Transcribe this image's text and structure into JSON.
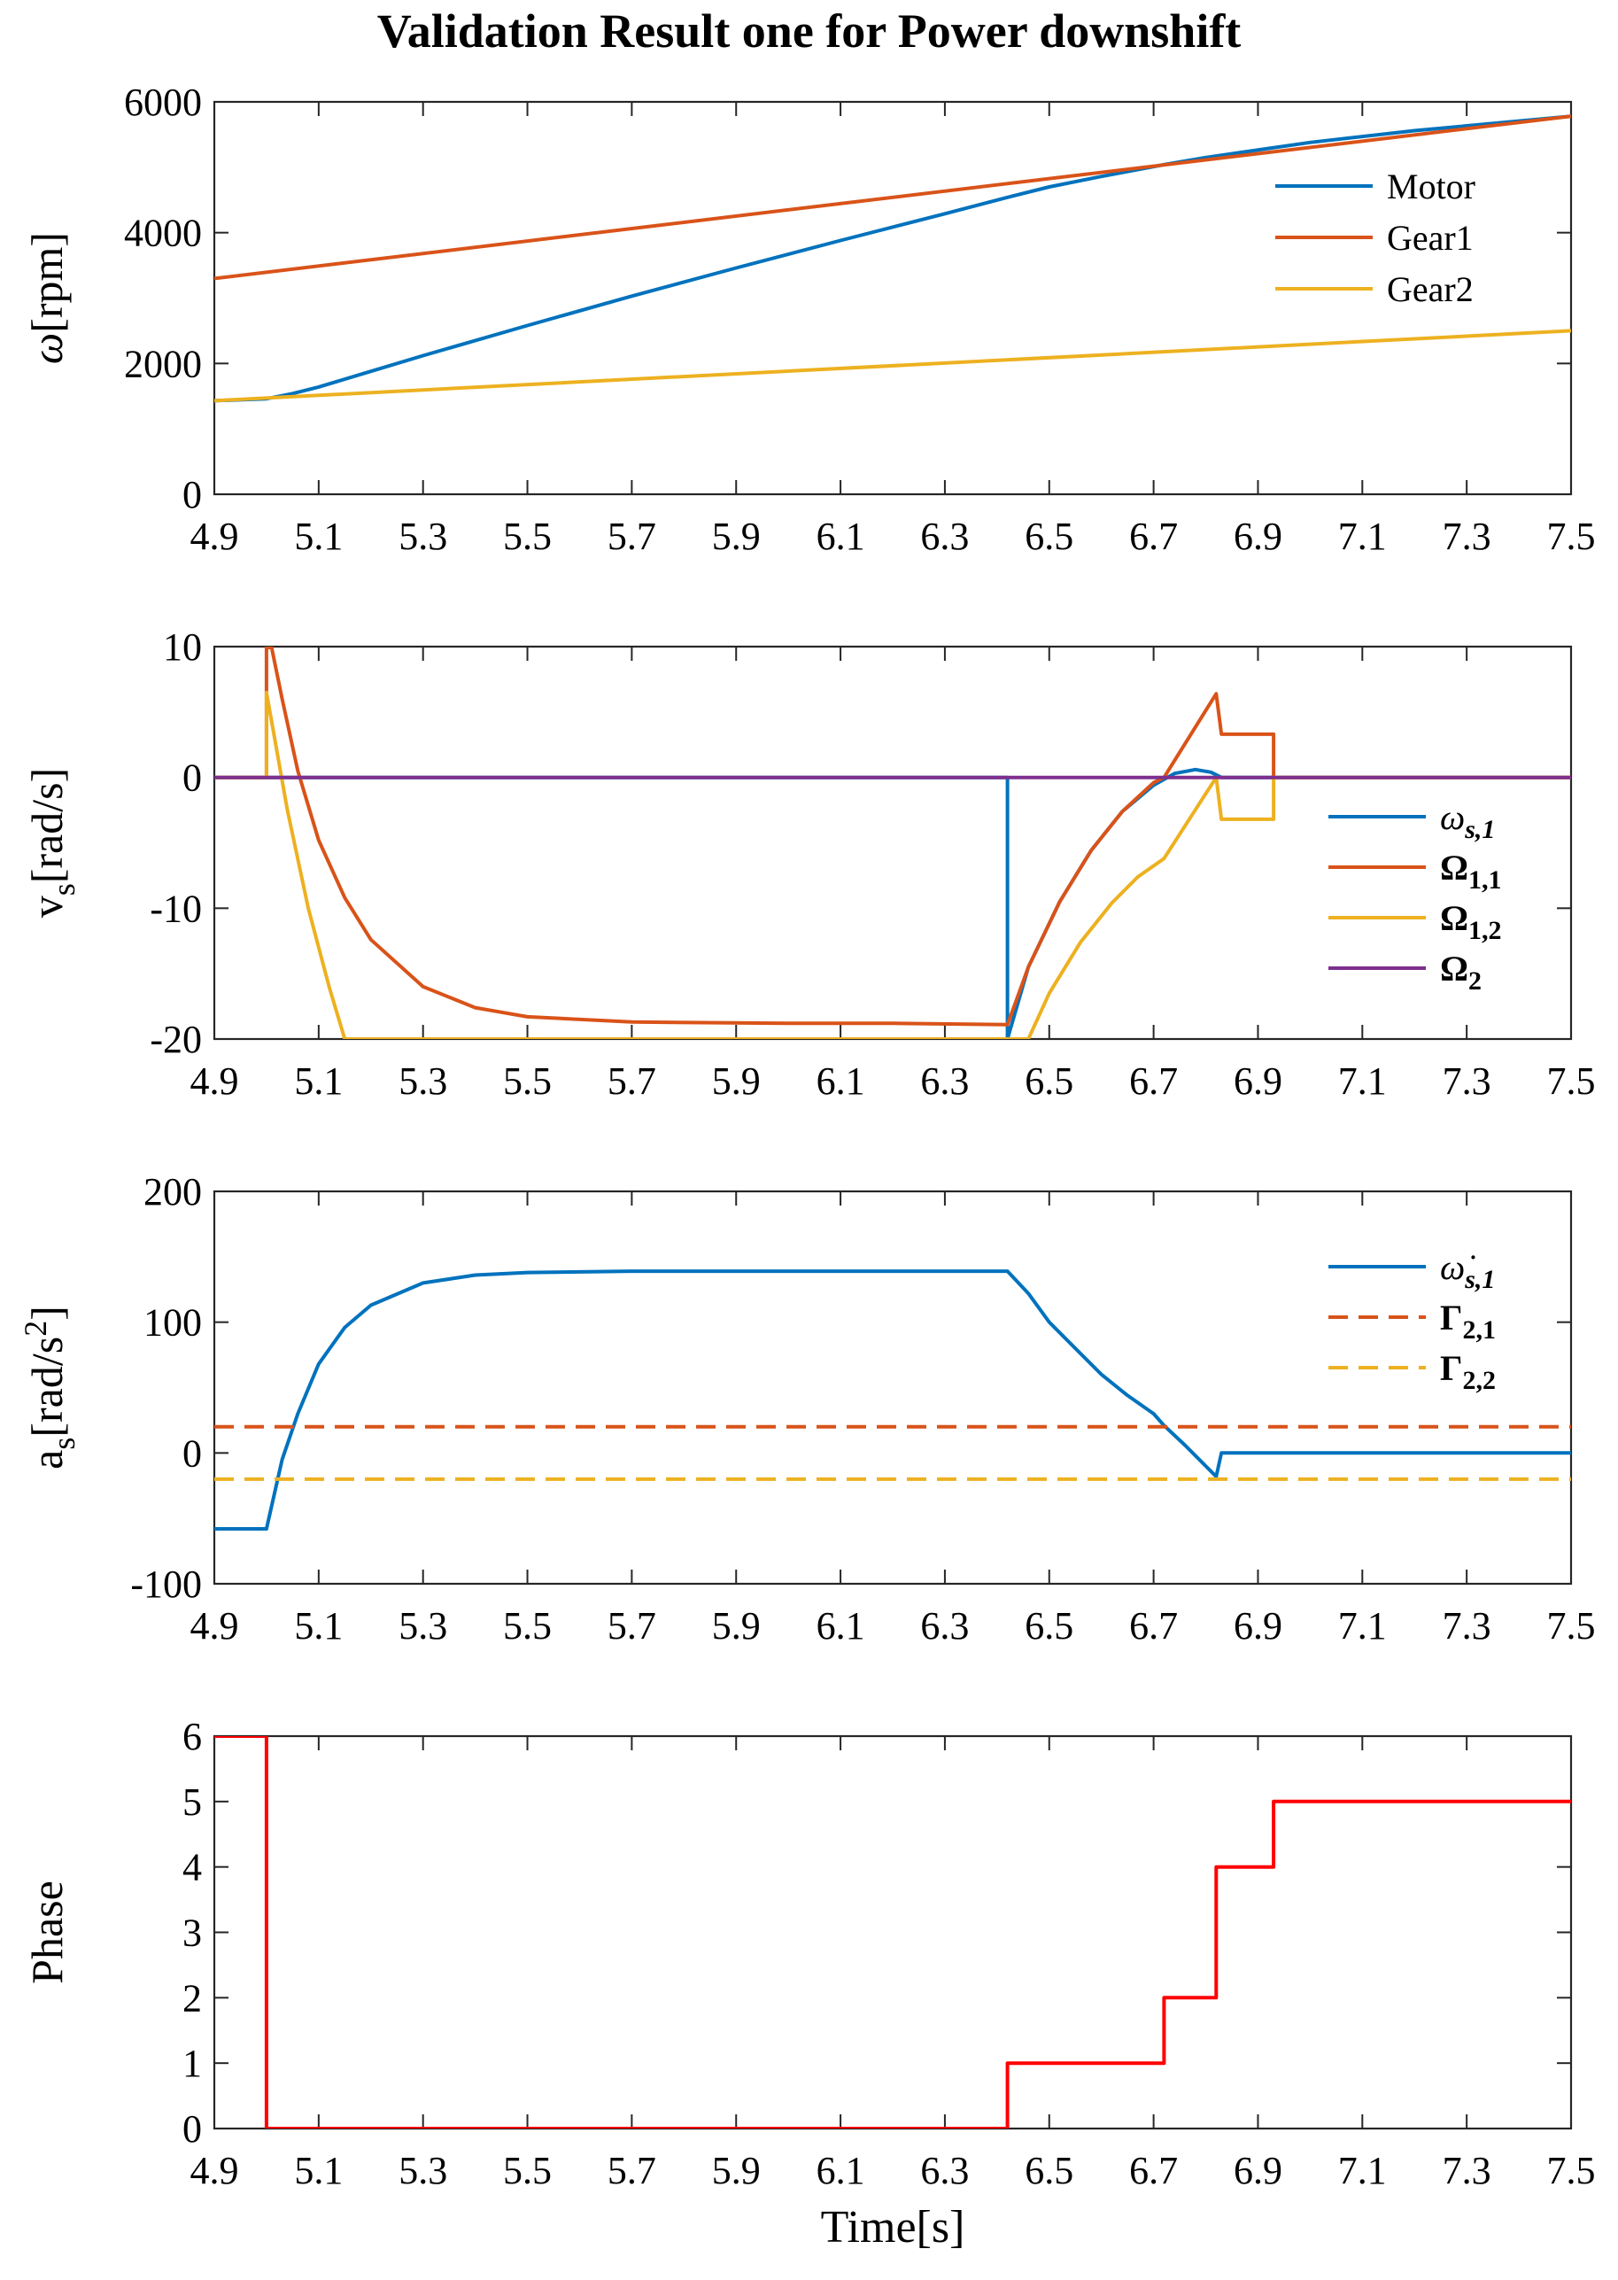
{
  "figure_title": "Validation Result one for Power downshift",
  "colors": {
    "blue": "#0072BD",
    "orange": "#D95319",
    "yellow": "#EDB120",
    "purple": "#7E2F8E",
    "red": "#FF0000",
    "axis": "#262626"
  },
  "chart_data": [
    {
      "type": "line",
      "ylabel_symbol": "ω",
      "ylabel_unit": "[rpm]",
      "xlim": [
        4.9,
        7.5
      ],
      "ylim": [
        0,
        6000
      ],
      "x_ticks": [
        "4.9",
        "5.1",
        "5.3",
        "5.5",
        "5.7",
        "5.9",
        "6.1",
        "6.3",
        "6.5",
        "6.7",
        "6.9",
        "7.1",
        "7.3",
        "7.5"
      ],
      "y_ticks": [
        "0",
        "2000",
        "4000",
        "6000"
      ],
      "legend": {
        "position": "top-right",
        "labels": [
          "Motor",
          "Gear1",
          "Gear2"
        ]
      },
      "series": [
        {
          "name": "Motor",
          "color": "blue",
          "dash": false,
          "points": [
            [
              4.9,
              1430
            ],
            [
              5.0,
              1460
            ],
            [
              5.05,
              1540
            ],
            [
              5.1,
              1640
            ],
            [
              5.2,
              1880
            ],
            [
              5.3,
              2120
            ],
            [
              5.5,
              2580
            ],
            [
              5.7,
              3030
            ],
            [
              5.9,
              3460
            ],
            [
              6.1,
              3880
            ],
            [
              6.3,
              4290
            ],
            [
              6.42,
              4540
            ],
            [
              6.5,
              4700
            ],
            [
              6.6,
              4860
            ],
            [
              6.72,
              5040
            ],
            [
              6.8,
              5150
            ],
            [
              7.0,
              5380
            ],
            [
              7.2,
              5560
            ],
            [
              7.5,
              5780
            ]
          ]
        },
        {
          "name": "Gear1",
          "color": "orange",
          "dash": false,
          "points": [
            [
              4.9,
              3300
            ],
            [
              7.5,
              5780
            ]
          ]
        },
        {
          "name": "Gear2",
          "color": "yellow",
          "dash": false,
          "points": [
            [
              4.9,
              1430
            ],
            [
              7.5,
              2500
            ]
          ]
        }
      ]
    },
    {
      "type": "line",
      "ylabel_symbol": "v",
      "ylabel_sub": "s",
      "ylabel_unit": "[rad/s]",
      "xlim": [
        4.9,
        7.5
      ],
      "ylim": [
        -20,
        10
      ],
      "x_ticks": [
        "4.9",
        "5.1",
        "5.3",
        "5.5",
        "5.7",
        "5.9",
        "6.1",
        "6.3",
        "6.5",
        "6.7",
        "6.9",
        "7.1",
        "7.3",
        "7.5"
      ],
      "y_ticks": [
        "-20",
        "-10",
        "0",
        "10"
      ],
      "legend": {
        "position": "right",
        "labels": [
          {
            "sym": "ω",
            "sub": "s,1",
            "italic": true
          },
          {
            "sym": "Ω",
            "sub": "1,1",
            "italic": false
          },
          {
            "sym": "Ω",
            "sub": "1,2",
            "italic": false
          },
          {
            "sym": "Ω",
            "sub": "2",
            "italic": false
          }
        ]
      },
      "series": [
        {
          "name": "ωs,1",
          "color": "blue",
          "dash": false,
          "points": [
            [
              4.9,
              0
            ],
            [
              6.42,
              0
            ],
            [
              6.42,
              -20
            ],
            [
              6.46,
              -14.5
            ],
            [
              6.52,
              -9.5
            ],
            [
              6.58,
              -5.6
            ],
            [
              6.64,
              -2.6
            ],
            [
              6.7,
              -0.6
            ],
            [
              6.74,
              0.3
            ],
            [
              6.78,
              0.6
            ],
            [
              6.81,
              0.4
            ],
            [
              6.83,
              0
            ],
            [
              7.5,
              0
            ]
          ]
        },
        {
          "name": "Ω1,1",
          "color": "orange",
          "dash": false,
          "points": [
            [
              4.9,
              0
            ],
            [
              5.0,
              0
            ],
            [
              5.0,
              10
            ],
            [
              5.01,
              9.9
            ],
            [
              5.03,
              6.0
            ],
            [
              5.06,
              0.5
            ],
            [
              5.1,
              -4.8
            ],
            [
              5.15,
              -9.2
            ],
            [
              5.2,
              -12.4
            ],
            [
              5.3,
              -16.0
            ],
            [
              5.4,
              -17.6
            ],
            [
              5.5,
              -18.3
            ],
            [
              5.7,
              -18.7
            ],
            [
              6.0,
              -18.8
            ],
            [
              6.2,
              -18.8
            ],
            [
              6.42,
              -18.9
            ],
            [
              6.46,
              -14.5
            ],
            [
              6.52,
              -9.5
            ],
            [
              6.58,
              -5.6
            ],
            [
              6.64,
              -2.6
            ],
            [
              6.7,
              -0.4
            ],
            [
              6.72,
              0
            ],
            [
              6.82,
              6.4
            ],
            [
              6.83,
              3.3
            ],
            [
              6.93,
              3.3
            ],
            [
              6.93,
              0
            ],
            [
              7.5,
              0
            ]
          ]
        },
        {
          "name": "Ω1,2",
          "color": "yellow",
          "dash": false,
          "points": [
            [
              4.9,
              0
            ],
            [
              5.0,
              0
            ],
            [
              5.0,
              6.5
            ],
            [
              5.04,
              -2.5
            ],
            [
              5.08,
              -10.0
            ],
            [
              5.12,
              -16.0
            ],
            [
              5.15,
              -20
            ],
            [
              6.46,
              -20
            ],
            [
              6.5,
              -16.5
            ],
            [
              6.56,
              -12.6
            ],
            [
              6.62,
              -9.6
            ],
            [
              6.67,
              -7.6
            ],
            [
              6.72,
              -6.2
            ],
            [
              6.82,
              0
            ],
            [
              6.83,
              -3.2
            ],
            [
              6.93,
              -3.2
            ],
            [
              6.93,
              0
            ],
            [
              7.5,
              0
            ]
          ]
        },
        {
          "name": "Ω2",
          "color": "purple",
          "dash": false,
          "points": [
            [
              4.9,
              0
            ],
            [
              7.5,
              0
            ]
          ]
        }
      ]
    },
    {
      "type": "line",
      "ylabel_symbol": "a",
      "ylabel_sub": "s",
      "ylabel_unit": "[rad/s",
      "ylabel_sup": "2",
      "ylabel_close": "]",
      "xlim": [
        4.9,
        7.5
      ],
      "ylim": [
        -100,
        200
      ],
      "x_ticks": [
        "4.9",
        "5.1",
        "5.3",
        "5.5",
        "5.7",
        "5.9",
        "6.1",
        "6.3",
        "6.5",
        "6.7",
        "6.9",
        "7.1",
        "7.3",
        "7.5"
      ],
      "y_ticks": [
        "-100",
        "0",
        "100",
        "200"
      ],
      "legend": {
        "position": "top-right",
        "labels": [
          {
            "sym": "ω̇",
            "sub": "s,1",
            "italic": true
          },
          {
            "sym": "Γ",
            "sub": "2,1",
            "italic": false
          },
          {
            "sym": "Γ",
            "sub": "2,2",
            "italic": false
          }
        ]
      },
      "series": [
        {
          "name": "ω̇s,1",
          "color": "blue",
          "dash": false,
          "points": [
            [
              4.9,
              -58
            ],
            [
              5.0,
              -58
            ],
            [
              5.0,
              -58
            ],
            [
              5.03,
              -5
            ],
            [
              5.06,
              30
            ],
            [
              5.1,
              68
            ],
            [
              5.15,
              96
            ],
            [
              5.2,
              113
            ],
            [
              5.3,
              130
            ],
            [
              5.4,
              136
            ],
            [
              5.5,
              138
            ],
            [
              5.7,
              139
            ],
            [
              6.0,
              139
            ],
            [
              6.42,
              139
            ],
            [
              6.46,
              122
            ],
            [
              6.5,
              100
            ],
            [
              6.55,
              80
            ],
            [
              6.6,
              60
            ],
            [
              6.65,
              44
            ],
            [
              6.7,
              30
            ],
            [
              6.72,
              21
            ],
            [
              6.76,
              6
            ],
            [
              6.8,
              -10
            ],
            [
              6.82,
              -18
            ],
            [
              6.83,
              0
            ],
            [
              7.5,
              0
            ]
          ]
        },
        {
          "name": "Γ2,1",
          "color": "orange",
          "dash": true,
          "points": [
            [
              4.9,
              20
            ],
            [
              7.5,
              20
            ]
          ]
        },
        {
          "name": "Γ2,2",
          "color": "yellow",
          "dash": true,
          "points": [
            [
              4.9,
              -20
            ],
            [
              7.5,
              -20
            ]
          ]
        }
      ]
    },
    {
      "type": "line",
      "ylabel": "Phase",
      "xlabel": "Time[s]",
      "xlim": [
        4.9,
        7.5
      ],
      "ylim": [
        0,
        6
      ],
      "x_ticks": [
        "4.9",
        "5.1",
        "5.3",
        "5.5",
        "5.7",
        "5.9",
        "6.1",
        "6.3",
        "6.5",
        "6.7",
        "6.9",
        "7.1",
        "7.3",
        "7.5"
      ],
      "y_ticks": [
        "0",
        "1",
        "2",
        "3",
        "4",
        "5",
        "6"
      ],
      "series": [
        {
          "name": "Phase",
          "color": "red",
          "dash": false,
          "points": [
            [
              4.9,
              6
            ],
            [
              5.0,
              6
            ],
            [
              5.0,
              0
            ],
            [
              6.42,
              0
            ],
            [
              6.42,
              1
            ],
            [
              6.72,
              1
            ],
            [
              6.72,
              2
            ],
            [
              6.82,
              2
            ],
            [
              6.82,
              4
            ],
            [
              6.93,
              4
            ],
            [
              6.93,
              5
            ],
            [
              7.5,
              5
            ]
          ]
        }
      ]
    }
  ]
}
